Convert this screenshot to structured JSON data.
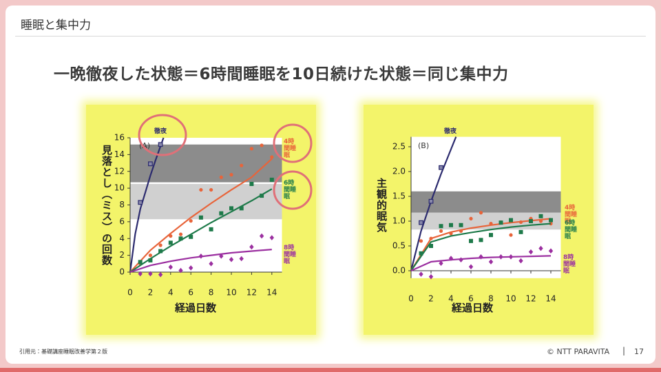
{
  "header": {
    "title": "睡眠と集中力"
  },
  "headline": "一晩徹夜した状態＝6時間睡眠を10日続けた状態＝同じ集中力",
  "footer": {
    "source": "引用元：基礎講座睡眠改善学第２版",
    "copyright": "© NTT PARAVITA",
    "page": "17"
  },
  "chart_data": [
    {
      "type": "scatter",
      "panel": "(A)",
      "xlabel": "経過日数",
      "ylabel": "見落とし（ミス）の回数",
      "xlim": [
        0,
        15
      ],
      "ylim": [
        0,
        16
      ],
      "xticks": [
        0,
        2,
        4,
        6,
        8,
        10,
        12,
        14
      ],
      "yticks": [
        0,
        2,
        4,
        6,
        8,
        10,
        12,
        14,
        16
      ],
      "bands": [
        {
          "range": [
            10.7,
            15.2
          ],
          "color": "#8c8c8c"
        },
        {
          "range": [
            6.3,
            10.5
          ],
          "color": "#d0d0d0"
        }
      ],
      "series": [
        {
          "name": "徹夜",
          "color": "#2b2a6e",
          "marker": "square-open",
          "x": [
            1,
            2,
            3
          ],
          "values": [
            8.3,
            12.9,
            15.2
          ],
          "fit_x": [
            0,
            0.5,
            1,
            1.5,
            2,
            2.5,
            3,
            3.3
          ],
          "fit": [
            0,
            4.5,
            7.5,
            9.5,
            11.5,
            13.3,
            15,
            16
          ]
        },
        {
          "name": "4時間睡眠",
          "color": "#e8643a",
          "marker": "circle",
          "x": [
            1,
            2,
            3,
            4,
            5,
            6,
            7,
            8,
            9,
            10,
            11,
            12,
            13,
            14
          ],
          "values": [
            1.0,
            2.0,
            3.2,
            4.3,
            4.5,
            6.1,
            9.8,
            9.8,
            11.3,
            11.6,
            12.7,
            14.7,
            15.1,
            13.7
          ],
          "fit_x": [
            0,
            2,
            4,
            6,
            8,
            10,
            12,
            14
          ],
          "fit": [
            0,
            2.6,
            4.6,
            6.5,
            8.2,
            9.8,
            11.3,
            13.5
          ]
        },
        {
          "name": "6時間睡眠",
          "color": "#1e7a4a",
          "marker": "square",
          "x": [
            1,
            2,
            3,
            4,
            5,
            6,
            7,
            8,
            9,
            10,
            11,
            12,
            13,
            14
          ],
          "values": [
            1.2,
            1.4,
            2.5,
            3.5,
            4.0,
            4.2,
            6.5,
            5.1,
            7.0,
            7.6,
            7.6,
            10.5,
            9.1,
            11.0
          ],
          "fit_x": [
            0,
            2,
            4,
            6,
            8,
            10,
            12,
            14
          ],
          "fit": [
            0,
            1.6,
            3.1,
            4.5,
            5.9,
            7.2,
            8.5,
            9.9
          ]
        },
        {
          "name": "8時間睡眠",
          "color": "#9b2fa0",
          "marker": "diamond",
          "x": [
            1,
            2,
            3,
            4,
            5,
            6,
            7,
            8,
            9,
            10,
            11,
            12,
            13,
            14
          ],
          "values": [
            -0.2,
            -0.2,
            -0.3,
            0.6,
            0.2,
            0.5,
            1.9,
            1.0,
            1.9,
            1.5,
            1.6,
            3.0,
            4.3,
            4.1
          ],
          "fit_x": [
            0,
            2,
            4,
            6,
            8,
            10,
            12,
            14
          ],
          "fit": [
            0,
            0.8,
            1.3,
            1.7,
            2.0,
            2.3,
            2.5,
            2.7
          ]
        }
      ]
    },
    {
      "type": "scatter",
      "panel": "(B)",
      "xlabel": "経過日数",
      "ylabel": "主観的眠気",
      "xlim": [
        0,
        15
      ],
      "ylim": [
        -0.15,
        2.7
      ],
      "xticks": [
        0,
        2,
        4,
        6,
        8,
        10,
        12,
        14
      ],
      "yticks": [
        {
          "value": 0,
          "label": "0.0"
        },
        0.5,
        {
          "value": 1,
          "label": "1.0"
        },
        1.5,
        {
          "value": 2,
          "label": "2.0"
        },
        2.5
      ],
      "bands": [
        {
          "range": [
            1.17,
            1.6
          ],
          "color": "#8c8c8c"
        },
        {
          "range": [
            0.83,
            1.17
          ],
          "color": "#d0d0d0"
        }
      ],
      "series": [
        {
          "name": "徹夜",
          "color": "#2b2a6e",
          "marker": "square-open",
          "x": [
            1,
            2,
            3
          ],
          "values": [
            0.97,
            1.4,
            2.08
          ],
          "fit_x": [
            0,
            1,
            2,
            3,
            4,
            4.5
          ],
          "fit": [
            0,
            0.8,
            1.4,
            1.95,
            2.45,
            2.7
          ]
        },
        {
          "name": "4時間睡眠",
          "color": "#e8643a",
          "marker": "circle",
          "x": [
            1,
            2,
            3,
            4,
            5,
            6,
            7,
            8,
            9,
            10,
            11,
            12,
            13,
            14
          ],
          "values": [
            0.6,
            0.65,
            0.8,
            0.75,
            0.8,
            1.05,
            1.17,
            0.95,
            0.98,
            0.72,
            0.98,
            1.05,
            1.0,
            0.95
          ],
          "fit_x": [
            0,
            2,
            4,
            6,
            8,
            10,
            12,
            14
          ],
          "fit": [
            0,
            0.65,
            0.78,
            0.86,
            0.92,
            0.97,
            1.01,
            1.05
          ]
        },
        {
          "name": "6時間睡眠",
          "color": "#1e7a4a",
          "marker": "square",
          "x": [
            1,
            2,
            3,
            4,
            5,
            6,
            7,
            8,
            9,
            10,
            11,
            12,
            13,
            14
          ],
          "values": [
            0.35,
            0.5,
            0.9,
            0.92,
            0.92,
            0.6,
            0.62,
            0.72,
            0.97,
            1.02,
            0.78,
            1.0,
            1.1,
            1.02
          ],
          "fit_x": [
            0,
            2,
            4,
            6,
            8,
            10,
            12,
            14
          ],
          "fit": [
            0,
            0.58,
            0.7,
            0.77,
            0.83,
            0.88,
            0.92,
            0.95
          ]
        },
        {
          "name": "8時間睡眠",
          "color": "#9b2fa0",
          "marker": "diamond",
          "x": [
            1,
            2,
            3,
            4,
            5,
            6,
            7,
            8,
            9,
            10,
            11,
            12,
            13,
            14
          ],
          "values": [
            -0.07,
            -0.12,
            0.15,
            0.25,
            0.22,
            0.08,
            0.28,
            0.18,
            0.28,
            0.28,
            0.2,
            0.38,
            0.45,
            0.4
          ],
          "fit_x": [
            0,
            2,
            4,
            6,
            8,
            10,
            12,
            14
          ],
          "fit": [
            0,
            0.18,
            0.22,
            0.25,
            0.27,
            0.28,
            0.29,
            0.3
          ]
        }
      ]
    }
  ]
}
